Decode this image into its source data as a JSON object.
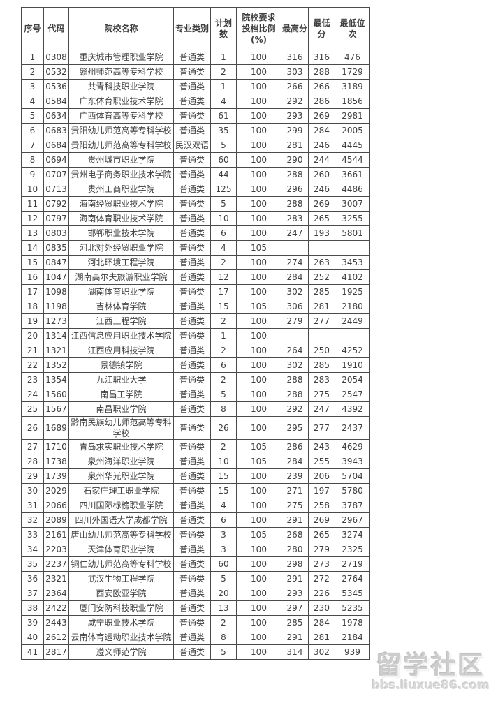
{
  "table": {
    "headers": [
      "序号",
      "代码",
      "院校名称",
      "专业类别",
      "计划数",
      "院校要求\n投档比例\n(%)",
      "最高分",
      "最低分",
      "最低位次"
    ],
    "rows": [
      [
        "1",
        "0308",
        "重庆城市管理职业学院",
        "普通类",
        "1",
        "100",
        "316",
        "316",
        "476"
      ],
      [
        "2",
        "0532",
        "赣州师范高等专科学校",
        "普通类",
        "2",
        "100",
        "303",
        "288",
        "1729"
      ],
      [
        "3",
        "0536",
        "共青科技职业学院",
        "普通类",
        "1",
        "100",
        "266",
        "266",
        "3189"
      ],
      [
        "4",
        "0584",
        "广东体育职业技术学院",
        "普通类",
        "4",
        "100",
        "292",
        "286",
        "1856"
      ],
      [
        "5",
        "0634",
        "广西体育高等专科学校",
        "普通类",
        "61",
        "100",
        "293",
        "269",
        "2981"
      ],
      [
        "6",
        "0683",
        "贵阳幼儿师范高等专科学校",
        "普通类",
        "35",
        "100",
        "299",
        "284",
        "2005"
      ],
      [
        "7",
        "0684",
        "贵阳幼儿师范高等专科学校",
        "民汉双语",
        "5",
        "100",
        "281",
        "246",
        "4445"
      ],
      [
        "8",
        "0694",
        "贵州城市职业学院",
        "普通类",
        "60",
        "100",
        "290",
        "244",
        "4544"
      ],
      [
        "9",
        "0707",
        "贵州电子商务职业技术学院",
        "普通类",
        "44",
        "100",
        "288",
        "260",
        "3661"
      ],
      [
        "10",
        "0713",
        "贵州工商职业学院",
        "普通类",
        "125",
        "100",
        "296",
        "246",
        "4486"
      ],
      [
        "11",
        "0792",
        "海南经贸职业技术学院",
        "普通类",
        "5",
        "100",
        "288",
        "269",
        "3007"
      ],
      [
        "12",
        "0797",
        "海南体育职业技术学院",
        "普通类",
        "10",
        "100",
        "283",
        "265",
        "3255"
      ],
      [
        "13",
        "0803",
        "邯郸职业技术学院",
        "普通类",
        "6",
        "100",
        "247",
        "193",
        "5801"
      ],
      [
        "14",
        "0835",
        "河北对外经贸职业学院",
        "普通类",
        "4",
        "105",
        "",
        "",
        ""
      ],
      [
        "15",
        "0847",
        "河北环境工程学院",
        "普通类",
        "2",
        "100",
        "274",
        "263",
        "3453"
      ],
      [
        "16",
        "1047",
        "湖南高尔夫旅游职业学院",
        "普通类",
        "12",
        "100",
        "284",
        "252",
        "4102"
      ],
      [
        "17",
        "1098",
        "湖南体育职业学院",
        "普通类",
        "17",
        "100",
        "302",
        "285",
        "1925"
      ],
      [
        "18",
        "1198",
        "吉林体育学院",
        "普通类",
        "15",
        "105",
        "306",
        "281",
        "2180"
      ],
      [
        "19",
        "1273",
        "江西工程学院",
        "普通类",
        "2",
        "100",
        "279",
        "277",
        "2449"
      ],
      [
        "20",
        "1314",
        "江西信息应用职业技术学院",
        "普通类",
        "1",
        "100",
        "",
        "",
        ""
      ],
      [
        "21",
        "1321",
        "江西应用科技学院",
        "普通类",
        "2",
        "100",
        "264",
        "250",
        "4252"
      ],
      [
        "22",
        "1352",
        "景德镇学院",
        "普通类",
        "6",
        "100",
        "302",
        "285",
        "1910"
      ],
      [
        "23",
        "1354",
        "九江职业大学",
        "普通类",
        "2",
        "100",
        "288",
        "283",
        "2054"
      ],
      [
        "24",
        "1560",
        "南昌工学院",
        "普通类",
        "5",
        "100",
        "288",
        "275",
        "2547"
      ],
      [
        "25",
        "1567",
        "南昌职业学院",
        "普通类",
        "8",
        "100",
        "292",
        "247",
        "4392"
      ],
      [
        "26",
        "1689",
        "黔南民族幼儿师范高等专科学校",
        "普通类",
        "26",
        "100",
        "295",
        "277",
        "2437"
      ],
      [
        "27",
        "1710",
        "青岛求实职业技术学院",
        "普通类",
        "2",
        "105",
        "286",
        "243",
        "4629"
      ],
      [
        "28",
        "1738",
        "泉州海洋职业学院",
        "普通类",
        "10",
        "105",
        "284",
        "255",
        "3943"
      ],
      [
        "29",
        "1739",
        "泉州华光职业学院",
        "普通类",
        "15",
        "100",
        "239",
        "206",
        "5704"
      ],
      [
        "30",
        "2029",
        "石家庄理工职业学院",
        "普通类",
        "15",
        "100",
        "271",
        "197",
        "5780"
      ],
      [
        "31",
        "2066",
        "四川国际标榜职业学院",
        "普通类",
        "4",
        "100",
        "275",
        "258",
        "3787"
      ],
      [
        "32",
        "2089",
        "四川外国语大学成都学院",
        "普通类",
        "6",
        "100",
        "291",
        "269",
        "2967"
      ],
      [
        "33",
        "2161",
        "唐山幼儿师范高等专科学校",
        "普通类",
        "3",
        "105",
        "268",
        "265",
        "3274"
      ],
      [
        "34",
        "2203",
        "天津体育职业学院",
        "普通类",
        "3",
        "100",
        "280",
        "279",
        "2325"
      ],
      [
        "35",
        "2237",
        "铜仁幼儿师范高等专科学校",
        "普通类",
        "60",
        "100",
        "298",
        "273",
        "2719"
      ],
      [
        "36",
        "2321",
        "武汉生物工程学院",
        "普通类",
        "5",
        "100",
        "291",
        "272",
        "2764"
      ],
      [
        "37",
        "2364",
        "西安欧亚学院",
        "普通类",
        "20",
        "100",
        "293",
        "226",
        "5345"
      ],
      [
        "38",
        "2422",
        "厦门安防科技职业学院",
        "普通类",
        "13",
        "100",
        "297",
        "230",
        "5235"
      ],
      [
        "39",
        "2443",
        "咸宁职业技术学院",
        "普通类",
        "2",
        "100",
        "285",
        "284",
        "1978"
      ],
      [
        "40",
        "2612",
        "云南体育运动职业技术学院",
        "普通类",
        "8",
        "100",
        "291",
        "281",
        "2184"
      ],
      [
        "41",
        "2817",
        "遵义师范学院",
        "普通类",
        "5",
        "100",
        "314",
        "302",
        "939"
      ]
    ]
  },
  "watermark": {
    "title": "留学社区",
    "url": "bbs.liuxue86.com"
  },
  "colors": {
    "text": "#3f3f3f",
    "border": "#4a4a4a",
    "watermark": "#cdcdcd",
    "background": "#ffffff"
  }
}
